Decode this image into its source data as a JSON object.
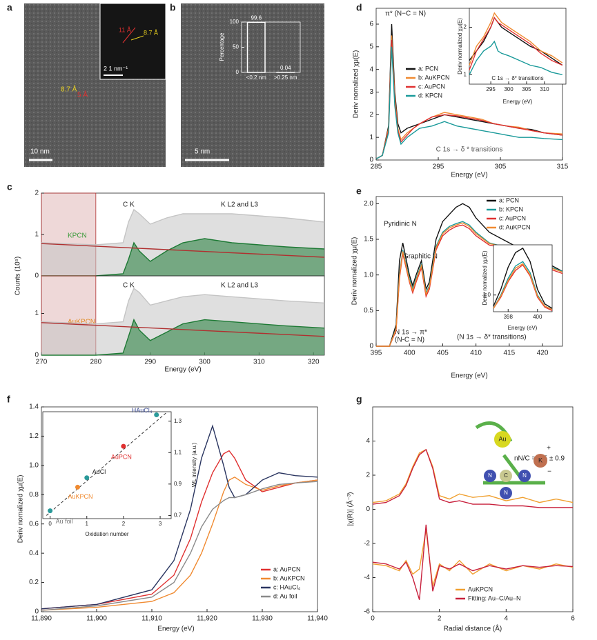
{
  "panel_labels": [
    "a",
    "b",
    "c",
    "d",
    "e",
    "f",
    "g"
  ],
  "images": [
    {
      "scale_bar": "10 nm",
      "inset_scale_bar": "2 1 nm⁻¹",
      "labels": [
        "8.7 Å",
        "5 Å",
        "11 Å",
        "8.7 Å"
      ]
    },
    {
      "scale_bar": "5 nm"
    }
  ],
  "illustration_labels": [
    "Au",
    "K",
    "N",
    "C",
    "N",
    "N",
    "+",
    "−"
  ],
  "chart_data": [
    {
      "type": "line",
      "ylabel": "Counts (10⁵)",
      "xlim": [
        270,
        322
      ],
      "ylim": [
        0,
        2
      ],
      "yticks": [
        0,
        1,
        2
      ],
      "shade": [
        270,
        280
      ],
      "annotations": [
        "C K",
        "K L2 and L3",
        "KPCN"
      ],
      "x": [
        270,
        280,
        285,
        286,
        287,
        288,
        290,
        293,
        296,
        300,
        305,
        310,
        315,
        322
      ],
      "series": [
        {
          "color": "#c4c4c4",
          "fill": true,
          "values": [
            0.8,
            0.75,
            0.8,
            1.3,
            1.6,
            1.5,
            1.25,
            1.4,
            1.5,
            1.5,
            1.5,
            1.45,
            1.4,
            1.3
          ]
        },
        {
          "color": "#1e7a35",
          "fill": true,
          "values": [
            0,
            0,
            0.05,
            0.4,
            0.8,
            0.6,
            0.35,
            0.6,
            0.8,
            0.9,
            0.8,
            0.75,
            0.7,
            0.65
          ]
        },
        {
          "color": "#b03030",
          "x": [
            270,
            322
          ],
          "values": [
            0.78,
            0.45
          ]
        }
      ]
    },
    {
      "type": "line",
      "xlabel": "Energy (eV)",
      "xlim": [
        270,
        322
      ],
      "ylim": [
        0,
        1.9
      ],
      "yticks": [
        0,
        1
      ],
      "xticks": [
        270,
        280,
        290,
        300,
        310,
        320
      ],
      "shade": [
        270,
        280
      ],
      "annotations": [
        "C K",
        "K L2 and L3",
        "AuKPCN"
      ],
      "x": [
        270,
        280,
        285,
        286,
        287,
        288,
        290,
        293,
        296,
        300,
        305,
        310,
        315,
        322
      ],
      "series": [
        {
          "color": "#c4c4c4",
          "fill": true,
          "values": [
            0.8,
            0.75,
            0.8,
            1.3,
            1.6,
            1.5,
            1.2,
            1.3,
            1.4,
            1.45,
            1.4,
            1.35,
            1.3,
            1.25
          ]
        },
        {
          "color": "#1e7a35",
          "fill": true,
          "values": [
            0,
            0,
            0.05,
            0.45,
            0.85,
            0.6,
            0.35,
            0.55,
            0.75,
            0.85,
            0.8,
            0.75,
            0.7,
            0.65
          ]
        },
        {
          "color": "#b03030",
          "x": [
            270,
            322
          ],
          "values": [
            0.78,
            0.45
          ]
        }
      ]
    },
    {
      "type": "line",
      "xlabel": "Energy (eV)",
      "ylabel": "Deriv nomalized χμ(E)",
      "xlim": [
        285,
        315
      ],
      "ylim": [
        0,
        6.7
      ],
      "xticks": [
        285,
        295,
        305,
        315
      ],
      "yticks": [
        0,
        1,
        2,
        3,
        4,
        5,
        6
      ],
      "annotations": [
        "π* (N−C = N)",
        "C 1s → δ * transitions"
      ],
      "x": [
        285,
        286,
        287,
        287.5,
        288,
        288.5,
        289,
        290,
        291,
        292,
        294,
        296,
        298,
        300,
        302,
        304,
        306,
        308,
        310,
        312,
        315
      ],
      "series": [
        {
          "name": "a: PCN",
          "color": "#111111",
          "values": [
            0.05,
            0.2,
            1.5,
            6.0,
            3,
            1.6,
            1.2,
            1.4,
            1.5,
            1.6,
            1.8,
            2.0,
            1.9,
            1.8,
            1.7,
            1.6,
            1.5,
            1.4,
            1.35,
            1.2,
            1.1
          ]
        },
        {
          "name": "b: AuKPCN",
          "color": "#f08a30",
          "values": [
            0.05,
            0.2,
            1.4,
            5.5,
            2.8,
            1.4,
            0.9,
            1.2,
            1.4,
            1.6,
            1.9,
            2.1,
            2.0,
            1.9,
            1.8,
            1.6,
            1.5,
            1.45,
            1.3,
            1.2,
            1.15
          ]
        },
        {
          "name": "c: AuPCN",
          "color": "#e03030",
          "values": [
            0.05,
            0.2,
            1.3,
            5.3,
            2.6,
            1.3,
            0.8,
            1.1,
            1.4,
            1.6,
            1.9,
            2.0,
            1.95,
            1.85,
            1.75,
            1.6,
            1.5,
            1.4,
            1.3,
            1.2,
            1.1
          ]
        },
        {
          "name": "d: KPCN",
          "color": "#1a9a9a",
          "values": [
            0.05,
            0.2,
            1.2,
            5.0,
            2.4,
            1.2,
            0.7,
            1.0,
            1.2,
            1.4,
            1.5,
            1.7,
            1.5,
            1.4,
            1.3,
            1.2,
            1.1,
            1.0,
            1.0,
            0.95,
            0.9
          ]
        }
      ]
    },
    {
      "type": "line",
      "xlabel": "Energy (eV)",
      "ylabel": "Deriv normalized χμ(E)",
      "xlim": [
        289,
        316
      ],
      "ylim": [
        0.8,
        2.4
      ],
      "xticks": [
        295,
        300,
        305,
        310
      ],
      "yticks": [
        1,
        2
      ],
      "annotations": [
        "C 1s → δ* transitions"
      ],
      "x": [
        289,
        291,
        293,
        295,
        296,
        297,
        298,
        300,
        303,
        306,
        309,
        312,
        315
      ],
      "series": [
        {
          "color": "#111111",
          "values": [
            1.3,
            1.5,
            1.7,
            2.0,
            2.2,
            2.1,
            2.0,
            1.9,
            1.75,
            1.6,
            1.5,
            1.35,
            1.2
          ]
        },
        {
          "color": "#f08a30",
          "values": [
            1.2,
            1.6,
            1.8,
            2.1,
            2.3,
            2.2,
            2.1,
            2.0,
            1.85,
            1.7,
            1.5,
            1.4,
            1.25
          ]
        },
        {
          "color": "#e03030",
          "values": [
            1.1,
            1.5,
            1.75,
            2.0,
            2.2,
            2.1,
            2.05,
            1.95,
            1.8,
            1.65,
            1.45,
            1.3,
            1.2
          ]
        },
        {
          "color": "#1a9a9a",
          "values": [
            1.0,
            1.3,
            1.5,
            1.6,
            1.7,
            1.5,
            1.45,
            1.4,
            1.3,
            1.2,
            1.15,
            1.05,
            1.0
          ]
        }
      ]
    },
    {
      "type": "line",
      "xlabel": "Energy (eV)",
      "ylabel": "Deriv nomalized χμ(E)",
      "xlim": [
        395,
        423
      ],
      "ylim": [
        0,
        2.1
      ],
      "xticks": [
        395,
        400,
        405,
        410,
        415,
        420
      ],
      "yticks": [
        0,
        0.5,
        {
          "value": 1.0,
          "label": "1.0"
        },
        1.5,
        {
          "value": 2.0,
          "label": "2.0"
        }
      ],
      "annotations": [
        "Pyridinic N",
        "Graphitic N",
        "N 1s → π*",
        "(N-C = N)",
        "(N 1s → δ* transitions)"
      ],
      "x": [
        395,
        397,
        398,
        398.5,
        399,
        400,
        400.5,
        401,
        401.8,
        402.5,
        403,
        404,
        405,
        406,
        407,
        408,
        409,
        410,
        412,
        414,
        416,
        418,
        420,
        423
      ],
      "series": [
        {
          "name": "a: PCN",
          "color": "#111111",
          "values": [
            0,
            0,
            0.3,
            1.2,
            1.45,
            1.0,
            0.85,
            1.0,
            1.2,
            0.8,
            0.9,
            1.5,
            1.75,
            1.85,
            1.95,
            2.0,
            1.95,
            1.8,
            1.6,
            1.5,
            1.4,
            1.3,
            1.2,
            1.05
          ]
        },
        {
          "name": "b: KPCN",
          "color": "#1a9a9a",
          "values": [
            0,
            0,
            0.25,
            1.0,
            1.35,
            0.95,
            0.8,
            0.95,
            1.15,
            0.75,
            0.85,
            1.4,
            1.6,
            1.68,
            1.72,
            1.75,
            1.7,
            1.6,
            1.45,
            1.4,
            1.35,
            1.25,
            1.15,
            1.05
          ]
        },
        {
          "name": "c: AuPCN",
          "color": "#e03030",
          "values": [
            0,
            0,
            0.22,
            0.95,
            1.3,
            0.9,
            0.75,
            0.9,
            1.1,
            0.7,
            0.8,
            1.35,
            1.55,
            1.63,
            1.68,
            1.7,
            1.65,
            1.55,
            1.42,
            1.38,
            1.3,
            1.22,
            1.12,
            1.02
          ]
        },
        {
          "name": "d: AuKPCN",
          "color": "#f08a30",
          "values": [
            0,
            0,
            0.24,
            0.98,
            1.33,
            0.92,
            0.78,
            0.93,
            1.13,
            0.73,
            0.83,
            1.38,
            1.58,
            1.66,
            1.7,
            1.73,
            1.68,
            1.58,
            1.44,
            1.4,
            1.33,
            1.24,
            1.14,
            1.04
          ]
        }
      ]
    },
    {
      "type": "line",
      "xlabel": "Energy (eV)",
      "ylabel": "Deriv nomalized χμ(E)",
      "xlim": [
        397,
        401
      ],
      "ylim": [
        0.85,
        1.45
      ],
      "xticks": [
        398,
        400
      ],
      "yticks": [
        {
          "value": 1.0,
          "label": "1.0"
        }
      ],
      "x": [
        397,
        397.5,
        398,
        398.5,
        399,
        399.5,
        400,
        400.5,
        401
      ],
      "series": [
        {
          "color": "#111111",
          "values": [
            0.9,
            1.05,
            1.25,
            1.38,
            1.42,
            1.3,
            1.05,
            0.92,
            0.88
          ]
        },
        {
          "color": "#1a9a9a",
          "values": [
            0.88,
            1.0,
            1.15,
            1.26,
            1.3,
            1.2,
            1.0,
            0.9,
            0.87
          ]
        },
        {
          "color": "#e03030",
          "values": [
            0.88,
            0.98,
            1.12,
            1.22,
            1.27,
            1.17,
            0.98,
            0.89,
            0.86
          ]
        },
        {
          "color": "#f08a30",
          "values": [
            0.88,
            0.99,
            1.13,
            1.24,
            1.28,
            1.18,
            0.99,
            0.9,
            0.87
          ]
        }
      ]
    },
    {
      "type": "line",
      "xlabel": "Energy (eV)",
      "ylabel": "Deriv nomalized χμ(E)",
      "xlim": [
        11890,
        11940
      ],
      "ylim": [
        0,
        1.4
      ],
      "xticks": [
        {
          "value": 11890,
          "label": "11,890"
        },
        {
          "value": 11900,
          "label": "11,900"
        },
        {
          "value": 11910,
          "label": "11,910"
        },
        {
          "value": 11920,
          "label": "11,920"
        },
        {
          "value": 11930,
          "label": "11,930"
        },
        {
          "value": 11940,
          "label": "11,940"
        }
      ],
      "yticks": [
        0,
        0.2,
        0.4,
        0.6,
        0.8,
        {
          "value": 1.0,
          "label": "1.0"
        },
        1.2,
        1.4
      ],
      "x": [
        11890,
        11900,
        11910,
        11914,
        11917,
        11919,
        11921,
        11923,
        11924,
        11925,
        11927,
        11930,
        11933,
        11936,
        11940
      ],
      "series": [
        {
          "name": "a: AuPCN",
          "color": "#e03030",
          "values": [
            0.02,
            0.05,
            0.12,
            0.25,
            0.5,
            0.75,
            0.95,
            1.08,
            1.1,
            1.05,
            0.9,
            0.82,
            0.85,
            0.88,
            0.9
          ]
        },
        {
          "name": "b: AuKPCN",
          "color": "#f08a30",
          "values": [
            0.01,
            0.03,
            0.07,
            0.13,
            0.25,
            0.4,
            0.6,
            0.82,
            0.9,
            0.92,
            0.87,
            0.83,
            0.86,
            0.88,
            0.9
          ]
        },
        {
          "name": "c: HAuCl₄",
          "color": "#2a3560",
          "values": [
            0.02,
            0.05,
            0.15,
            0.35,
            0.7,
            1.05,
            1.27,
            1.0,
            0.85,
            0.78,
            0.8,
            0.9,
            0.95,
            0.93,
            0.92
          ]
        },
        {
          "name": "d: Au foil",
          "color": "#8a8a8a",
          "values": [
            0.01,
            0.04,
            0.1,
            0.2,
            0.4,
            0.58,
            0.7,
            0.76,
            0.78,
            0.78,
            0.8,
            0.84,
            0.87,
            0.88,
            0.89
          ]
        }
      ]
    },
    {
      "type": "scatter",
      "xlabel": "Oxidation number",
      "ylabel": "WL intensity (a.u.)",
      "xlim": [
        -0.2,
        3.3
      ],
      "ylim": [
        0.68,
        1.36
      ],
      "xticks": [
        0,
        1,
        2,
        3
      ],
      "yticks": [
        0.7,
        0.9,
        1.1,
        1.3
      ],
      "categories": [
        "Au foil",
        "AuKPCN",
        "AuCl",
        "AuPCN",
        "HAuCl₄"
      ],
      "x": [
        0,
        0.75,
        1,
        2,
        2.9
      ],
      "values": [
        0.73,
        0.88,
        0.94,
        1.14,
        1.34
      ],
      "colors": [
        "#2a9a9a",
        "#f08a30",
        "#2a9a9a",
        "#e03030",
        "#2a9a9a"
      ],
      "label_colors": [
        "#777777",
        "#f08a30",
        "#222222",
        "#e03030",
        "#3a4a90"
      ],
      "fit": {
        "x": [
          -0.1,
          3.2
        ],
        "values": [
          0.7,
          1.36
        ]
      }
    },
    {
      "type": "line",
      "xlabel": "Radial distance (Å)",
      "ylabel": "|χ(R)| (Å⁻³)",
      "xlim": [
        0,
        6
      ],
      "ylim": [
        -6,
        6
      ],
      "xticks": [
        0,
        2,
        4,
        6
      ],
      "yticks": [
        -6,
        -4,
        -2,
        0,
        2,
        4
      ],
      "annotations": [
        "nN/C = 2.5 ± 0.9"
      ],
      "x": [
        0,
        0.4,
        0.8,
        1.0,
        1.2,
        1.4,
        1.6,
        1.8,
        2.0,
        2.3,
        2.6,
        3,
        3.5,
        4,
        4.5,
        5,
        5.5,
        6
      ],
      "series": [
        {
          "color": "#f0a030",
          "values": [
            0.4,
            0.5,
            0.9,
            1.5,
            2.5,
            3.3,
            3.5,
            2.5,
            0.8,
            0.6,
            0.9,
            0.7,
            0.8,
            0.5,
            0.7,
            0.4,
            0.6,
            0.4
          ]
        },
        {
          "color": "#c8203c",
          "values": [
            0.3,
            0.4,
            0.8,
            1.4,
            2.4,
            3.2,
            3.5,
            2.4,
            0.6,
            0.4,
            0.5,
            0.3,
            0.3,
            0.2,
            0.2,
            0.1,
            0.1,
            0.1
          ]
        },
        {
          "name": "AuKPCN",
          "color": "#f0a030",
          "values": [
            -3.2,
            -3.3,
            -3.6,
            -3.0,
            -3.8,
            -3.5,
            -1.2,
            -4.5,
            -3.2,
            -3.6,
            -3.0,
            -3.8,
            -3.2,
            -3.6,
            -3.3,
            -3.5,
            -3.2,
            -3.4
          ]
        },
        {
          "name": "Fitting: Au–C/Au–N",
          "color": "#c8203c",
          "values": [
            -3.1,
            -3.2,
            -3.5,
            -3.1,
            -4.0,
            -5.3,
            -0.9,
            -4.8,
            -3.3,
            -3.5,
            -3.2,
            -3.6,
            -3.3,
            -3.5,
            -3.3,
            -3.4,
            -3.3,
            -3.35
          ]
        }
      ]
    },
    {
      "type": "bar",
      "ylabel": "Percentage",
      "ylim": [
        0,
        100
      ],
      "yticks": [
        0,
        50,
        100
      ],
      "categories": [
        "<0.2 nm",
        ">0.25 nm"
      ],
      "values": [
        99.6,
        0.04
      ]
    }
  ]
}
